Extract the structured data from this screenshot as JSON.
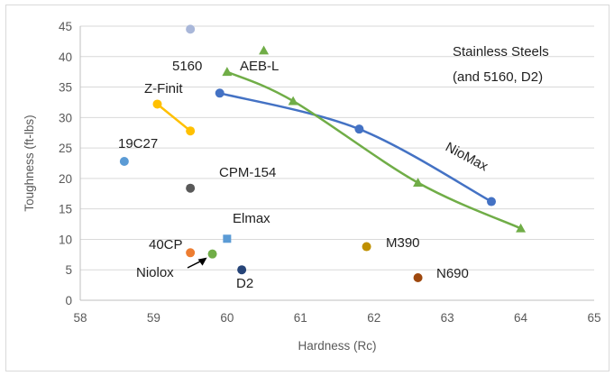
{
  "chart_data": {
    "type": "scatter",
    "title": "",
    "xlabel": "Hardness (Rc)",
    "ylabel": "Toughness (ft-lbs)",
    "xlim": [
      58,
      65
    ],
    "ylim": [
      0,
      45
    ],
    "x_ticks": [
      "58",
      "59",
      "60",
      "61",
      "62",
      "63",
      "64",
      "65"
    ],
    "y_ticks": [
      "0",
      "5",
      "10",
      "15",
      "20",
      "25",
      "30",
      "35",
      "40",
      "45"
    ],
    "grid": true,
    "annotation": [
      "Stainless Steels",
      "(and 5160, D2)"
    ],
    "series": [
      {
        "name": "NioMax",
        "color": "#4472c4",
        "marker": "circle",
        "connected": true,
        "x": [
          59.9,
          61.8,
          63.6
        ],
        "y": [
          34.0,
          28.1,
          16.2
        ]
      },
      {
        "name": "AEB-L",
        "color": "#70ad47",
        "marker": "triangle",
        "connected": true,
        "x": [
          60.0,
          60.9,
          62.6,
          64.0
        ],
        "y": [
          37.5,
          32.7,
          19.3,
          11.8
        ]
      },
      {
        "name": "Z-Finit",
        "color": "#ffc000",
        "marker": "circle",
        "connected": true,
        "x": [
          59.05,
          59.5
        ],
        "y": [
          32.2,
          27.8
        ]
      },
      {
        "name": "5160",
        "color": "#a9b7d9",
        "marker": "circle",
        "x": [
          59.5
        ],
        "y": [
          44.5
        ]
      },
      {
        "name": "AEB-L",
        "color": "#70ad47",
        "marker": "triangle",
        "x": [
          60.5
        ],
        "y": [
          41.0
        ]
      },
      {
        "name": "19C27",
        "color": "#5b9bd5",
        "marker": "circle",
        "x": [
          58.6
        ],
        "y": [
          22.8
        ]
      },
      {
        "name": "CPM-154",
        "color": "#595959",
        "marker": "circle",
        "x": [
          59.5
        ],
        "y": [
          18.4
        ]
      },
      {
        "name": "Elmax",
        "color": "#5b9bd5",
        "marker": "square",
        "x": [
          60.0
        ],
        "y": [
          10.1
        ]
      },
      {
        "name": "40CP",
        "color": "#ed7d31",
        "marker": "circle",
        "x": [
          59.5
        ],
        "y": [
          7.8
        ]
      },
      {
        "name": "Niolox",
        "color": "#70ad47",
        "marker": "circle",
        "x": [
          59.8
        ],
        "y": [
          7.6
        ]
      },
      {
        "name": "D2",
        "color": "#264478",
        "marker": "circle",
        "x": [
          60.2
        ],
        "y": [
          5.0
        ]
      },
      {
        "name": "M390",
        "color": "#bf9000",
        "marker": "circle",
        "x": [
          61.9
        ],
        "y": [
          8.8
        ]
      },
      {
        "name": "N690",
        "color": "#9e480e",
        "marker": "circle",
        "x": [
          62.6
        ],
        "y": [
          3.7
        ]
      }
    ]
  }
}
